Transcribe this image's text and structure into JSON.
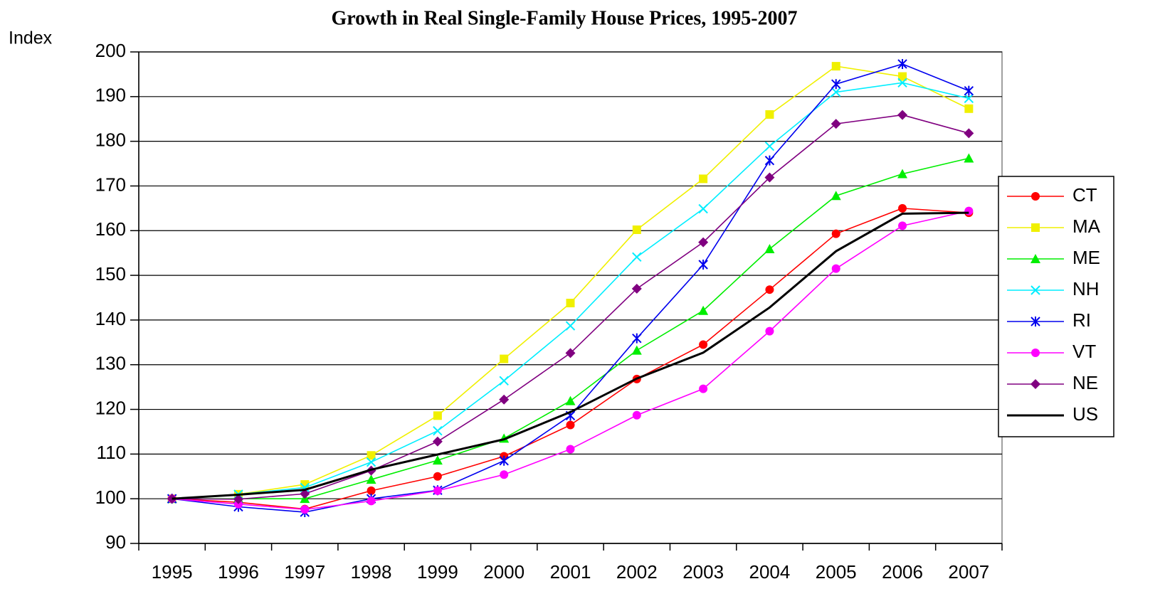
{
  "chart_data": {
    "type": "line",
    "title": "Growth in Real Single-Family House Prices, 1995-2007",
    "y_label": "Index",
    "categories": [
      "1995",
      "1996",
      "1997",
      "1998",
      "1999",
      "2000",
      "2001",
      "2002",
      "2003",
      "2004",
      "2005",
      "2006",
      "2007"
    ],
    "ylim": [
      90,
      200
    ],
    "yticks": [
      90,
      100,
      110,
      120,
      130,
      140,
      150,
      160,
      170,
      180,
      190,
      200
    ],
    "grid": true,
    "legend": "right",
    "series": [
      {
        "name": "CT",
        "color": "#ff0000",
        "marker": "circle",
        "values": [
          100,
          99.2,
          97.7,
          101.8,
          105,
          109.5,
          116.5,
          126.8,
          134.5,
          146.8,
          159.3,
          165,
          164
        ]
      },
      {
        "name": "MA",
        "color": "#f0f000",
        "marker": "square",
        "values": [
          100,
          101,
          103.2,
          109.7,
          118.6,
          131.3,
          143.8,
          160.2,
          171.6,
          186,
          196.8,
          194.5,
          187.3
        ]
      },
      {
        "name": "ME",
        "color": "#00ee00",
        "marker": "triangle",
        "values": [
          100,
          100,
          100,
          104.3,
          108.6,
          113.5,
          121.9,
          133.2,
          142.1,
          155.9,
          167.8,
          172.7,
          176.2
        ]
      },
      {
        "name": "NH",
        "color": "#00eeff",
        "marker": "x",
        "values": [
          100,
          101,
          102.5,
          108.2,
          115.2,
          126.4,
          138.7,
          154.1,
          164.9,
          178.9,
          191,
          193.1,
          189.6
        ]
      },
      {
        "name": "RI",
        "color": "#0000ee",
        "marker": "asterisk",
        "values": [
          100,
          98.2,
          97,
          100,
          101.9,
          108.5,
          118.6,
          135.9,
          152.4,
          175.7,
          192.8,
          197.3,
          191.3
        ]
      },
      {
        "name": "VT",
        "color": "#ff00ff",
        "marker": "circle",
        "values": [
          100,
          98.8,
          97.6,
          99.5,
          101.8,
          105.4,
          111.1,
          118.7,
          124.6,
          137.5,
          151.5,
          161.1,
          164.4
        ]
      },
      {
        "name": "NE",
        "color": "#800080",
        "marker": "diamond",
        "values": [
          100,
          99.9,
          101.1,
          106.3,
          112.8,
          122.2,
          132.6,
          147,
          157.4,
          171.9,
          183.9,
          185.9,
          181.8
        ]
      },
      {
        "name": "US",
        "color": "#000000",
        "marker": "none",
        "values": [
          100,
          100.9,
          102,
          106.5,
          109.9,
          113.3,
          119.4,
          126.9,
          132.7,
          142.8,
          155.4,
          163.8,
          164
        ]
      }
    ]
  }
}
